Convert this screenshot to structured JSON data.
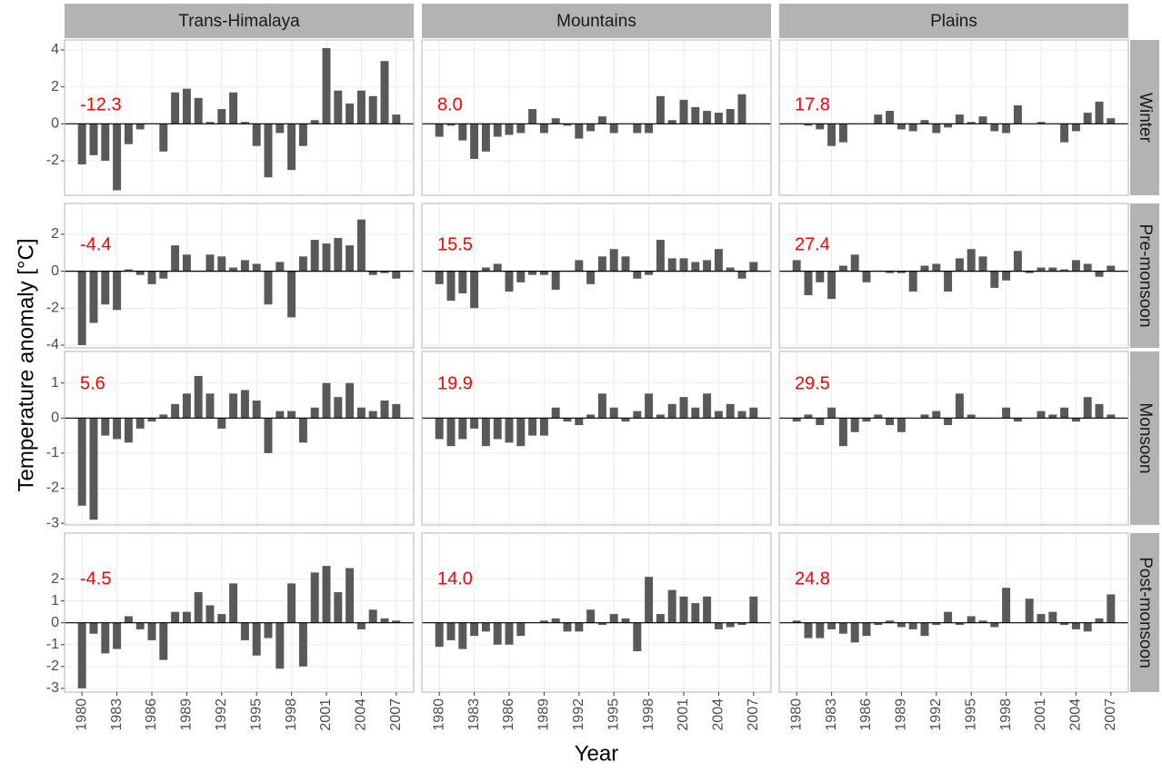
{
  "chart_data": {
    "type": "bar",
    "x_label": "Year",
    "y_label": "Temperature anomaly [°C]",
    "color": "#595959",
    "annotation_color": "#ff0000",
    "grid": true,
    "columns": [
      "Trans-Himalaya",
      "Mountains",
      "Plains"
    ],
    "x": [
      1980,
      1981,
      1982,
      1983,
      1984,
      1985,
      1986,
      1987,
      1988,
      1989,
      1990,
      1991,
      1992,
      1993,
      1994,
      1995,
      1996,
      1997,
      1998,
      1999,
      2000,
      2001,
      2002,
      2003,
      2004,
      2005,
      2006,
      2007
    ],
    "xlim": [
      1978.5,
      2008.5
    ],
    "xticks": [
      1980,
      1983,
      1986,
      1989,
      1992,
      1995,
      1998,
      2001,
      2004,
      2007
    ],
    "rows": [
      {
        "name": "Winter",
        "ylim": [
          -3.87,
          4.54
        ],
        "yticks": [
          -2,
          0,
          2,
          4
        ],
        "panels": [
          {
            "annotation": "-12.3",
            "values": [
              -2.2,
              -1.7,
              -2.0,
              -3.6,
              -1.1,
              -0.3,
              0,
              -1.5,
              1.7,
              1.9,
              1.4,
              0.1,
              0.8,
              1.7,
              0.1,
              -1.2,
              -2.9,
              -0.5,
              -2.5,
              -1.2,
              0.2,
              4.1,
              1.8,
              1.1,
              1.8,
              1.5,
              3.4,
              0.5
            ]
          },
          {
            "annotation": "8.0",
            "values": [
              -0.7,
              -0.1,
              -0.9,
              -1.9,
              -1.5,
              -0.7,
              -0.6,
              -0.5,
              0.8,
              -0.5,
              0.3,
              -0.1,
              -0.8,
              -0.4,
              0.4,
              -0.5,
              0,
              -0.5,
              -0.5,
              1.5,
              0.2,
              1.3,
              0.9,
              0.7,
              0.6,
              0.8,
              1.6,
              0
            ]
          },
          {
            "annotation": "17.8",
            "values": [
              0,
              -0.1,
              -0.3,
              -1.2,
              -1.0,
              0,
              0,
              0.5,
              0.7,
              -0.3,
              -0.4,
              0.2,
              -0.5,
              -0.2,
              0.5,
              0.1,
              0.4,
              -0.4,
              -0.5,
              1.0,
              0,
              0.1,
              0,
              -1.0,
              -0.4,
              0.6,
              1.2,
              0.3
            ]
          }
        ]
      },
      {
        "name": "Pre-monsoon",
        "ylim": [
          -4.15,
          3.67
        ],
        "yticks": [
          -4,
          -2,
          0,
          2
        ],
        "panels": [
          {
            "annotation": "-4.4",
            "values": [
              -4.0,
              -2.8,
              -1.8,
              -2.1,
              0.1,
              -0.2,
              -0.7,
              -0.4,
              1.4,
              0.9,
              0,
              0.9,
              0.8,
              0.2,
              0.6,
              0.4,
              -1.8,
              0.5,
              -2.5,
              0.8,
              1.7,
              1.5,
              1.8,
              1.4,
              2.8,
              -0.2,
              -0.1,
              -0.4
            ]
          },
          {
            "annotation": "15.5",
            "values": [
              -0.7,
              -1.6,
              -1.2,
              -2.0,
              0.2,
              0.4,
              -1.1,
              -0.6,
              -0.2,
              -0.2,
              -1.0,
              0,
              0.6,
              -0.7,
              0.8,
              1.2,
              0.8,
              -0.4,
              -0.2,
              1.7,
              0.7,
              0.7,
              0.5,
              0.6,
              1.2,
              0.2,
              -0.4,
              0.5
            ]
          },
          {
            "annotation": "27.4",
            "values": [
              0.6,
              -1.3,
              -0.6,
              -1.5,
              0.3,
              0.9,
              -0.6,
              0,
              -0.1,
              -0.1,
              -1.1,
              0.3,
              0.4,
              -1.1,
              0.7,
              1.2,
              0.8,
              -0.9,
              -0.5,
              1.1,
              -0.1,
              0.2,
              0.2,
              0.1,
              0.6,
              0.4,
              -0.3,
              0.3
            ]
          }
        ]
      },
      {
        "name": "Monsoon",
        "ylim": [
          -3.05,
          1.9
        ],
        "yticks": [
          -3,
          -2,
          -1,
          0,
          1
        ],
        "panels": [
          {
            "annotation": "5.6",
            "values": [
              -2.5,
              -2.9,
              -0.5,
              -0.6,
              -0.7,
              -0.3,
              -0.1,
              0.1,
              0.4,
              0.7,
              1.2,
              0.7,
              -0.3,
              0.7,
              0.8,
              0.5,
              -1.0,
              0.2,
              0.2,
              -0.7,
              0.3,
              1.0,
              0.6,
              1.0,
              0.3,
              0.2,
              0.5,
              0.4
            ]
          },
          {
            "annotation": "19.9",
            "values": [
              -0.6,
              -0.8,
              -0.6,
              -0.3,
              -0.8,
              -0.6,
              -0.7,
              -0.8,
              -0.5,
              -0.5,
              0.3,
              -0.1,
              -0.2,
              0.1,
              0.7,
              0.3,
              -0.1,
              0.2,
              0.7,
              0.1,
              0.4,
              0.6,
              0.3,
              0.7,
              0.2,
              0.4,
              0.2,
              0.3
            ]
          },
          {
            "annotation": "29.5",
            "values": [
              -0.1,
              0.1,
              -0.2,
              0.3,
              -0.8,
              -0.4,
              -0.1,
              0.1,
              -0.2,
              -0.4,
              0,
              0.1,
              0.2,
              -0.2,
              0.7,
              0.1,
              0,
              0,
              0.3,
              -0.1,
              0,
              0.2,
              0.1,
              0.3,
              -0.1,
              0.6,
              0.4,
              0.1
            ]
          }
        ]
      },
      {
        "name": "Post-monsoon",
        "ylim": [
          -3.17,
          4.1
        ],
        "yticks": [
          -3,
          -2,
          -1,
          0,
          1,
          2
        ],
        "panels": [
          {
            "annotation": "-4.5",
            "values": [
              -3.0,
              -0.5,
              -1.4,
              -1.2,
              0.3,
              -0.3,
              -0.8,
              -1.7,
              0.5,
              0.5,
              1.4,
              0.8,
              0.4,
              1.8,
              -0.8,
              -1.5,
              -0.7,
              -2.1,
              1.8,
              -2.0,
              2.3,
              2.6,
              1.4,
              2.5,
              -0.3,
              0.6,
              0.2,
              0.1
            ]
          },
          {
            "annotation": "14.0",
            "values": [
              -1.1,
              -0.8,
              -1.2,
              -0.6,
              -0.4,
              -1.0,
              -1.0,
              -0.6,
              0,
              0.1,
              0.2,
              -0.4,
              -0.4,
              0.6,
              -0.1,
              0.4,
              0.2,
              -1.3,
              2.1,
              0.4,
              1.5,
              1.2,
              0.9,
              1.2,
              -0.3,
              -0.2,
              -0.1,
              1.2
            ]
          },
          {
            "annotation": "24.8",
            "values": [
              0.1,
              -0.7,
              -0.7,
              -0.3,
              -0.5,
              -0.9,
              -0.6,
              -0.1,
              0.1,
              -0.2,
              -0.3,
              -0.6,
              -0.1,
              0.5,
              -0.1,
              0.3,
              0.1,
              -0.2,
              1.6,
              0,
              1.1,
              0.4,
              0.5,
              -0.1,
              -0.3,
              -0.4,
              0.2,
              1.3
            ]
          }
        ]
      }
    ]
  }
}
